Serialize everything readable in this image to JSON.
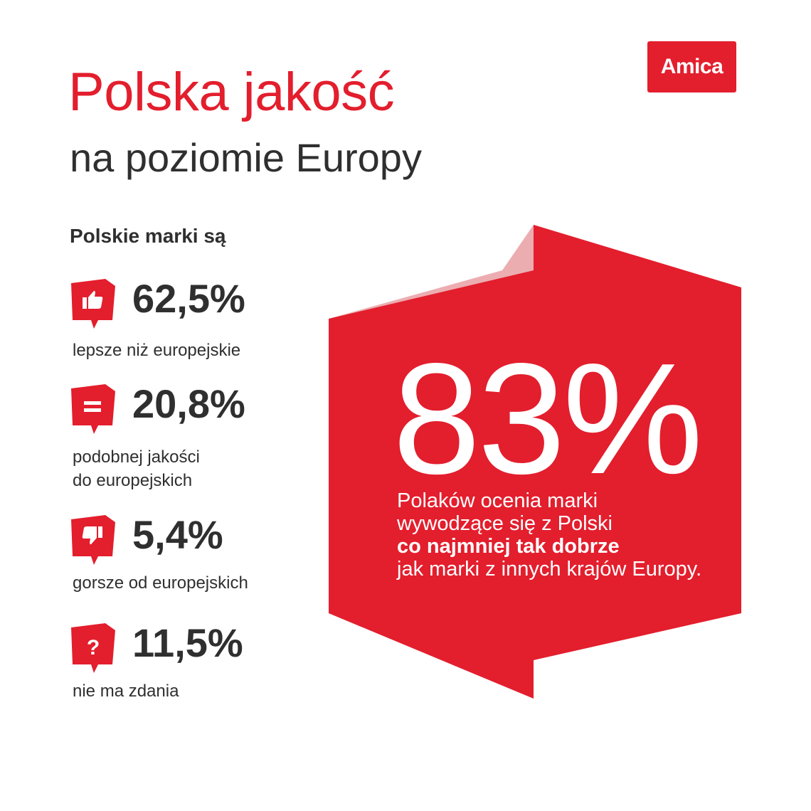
{
  "header": {
    "title": "Polska jakość",
    "subtitle": "na poziomie Europy"
  },
  "brand": {
    "logo_text": "Amica",
    "accent_color": "#e31e2d"
  },
  "stats_heading": "Polskie marki są",
  "chart_data": {
    "type": "table",
    "title": "Polskie marki są",
    "rows": [
      {
        "icon": "thumbs-up-icon",
        "value": "62,5%",
        "percent": 62.5,
        "label_lines": [
          "lepsze niż europejskie"
        ]
      },
      {
        "icon": "equals-icon",
        "value": "20,8%",
        "percent": 20.8,
        "label_lines": [
          "podobnej jakości",
          "do europejskich"
        ]
      },
      {
        "icon": "thumbs-down-icon",
        "value": "5,4%",
        "percent": 5.4,
        "label_lines": [
          "gorsze od europejskich"
        ]
      },
      {
        "icon": "question-icon",
        "value": "11,5%",
        "percent": 11.5,
        "label_lines": [
          "nie ma zdania"
        ]
      }
    ],
    "highlight": {
      "value": "83%",
      "percent": 83,
      "text_lines": [
        "Polaków ocenia marki",
        "wywodzące się z Polski",
        "co najmniej tak dobrze",
        "jak marki z innych krajów Europy."
      ],
      "bold_line_index": 2
    }
  }
}
